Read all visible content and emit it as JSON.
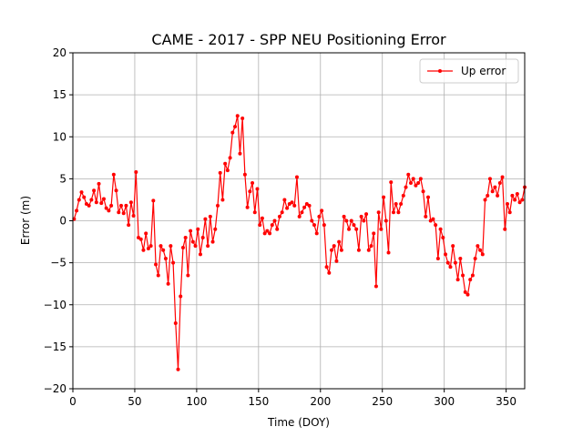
{
  "chart_data": {
    "type": "line",
    "title": "CAME - 2017 - SPP NEU Positioning Error",
    "xlabel": "Time (DOY)",
    "ylabel": "Error (m)",
    "x": [
      1,
      3,
      5,
      7,
      9,
      11,
      13,
      15,
      17,
      19,
      21,
      23,
      25,
      27,
      29,
      31,
      33,
      35,
      37,
      39,
      41,
      43,
      45,
      47,
      49,
      51,
      53,
      55,
      57,
      59,
      61,
      63,
      65,
      67,
      69,
      71,
      73,
      75,
      77,
      79,
      81,
      83,
      85,
      87,
      89,
      91,
      93,
      95,
      97,
      99,
      101,
      103,
      105,
      107,
      109,
      111,
      113,
      115,
      117,
      119,
      121,
      123,
      125,
      127,
      129,
      131,
      133,
      135,
      137,
      139,
      141,
      143,
      145,
      147,
      149,
      151,
      153,
      155,
      157,
      159,
      161,
      163,
      165,
      167,
      169,
      171,
      173,
      175,
      177,
      179,
      181,
      183,
      185,
      187,
      189,
      191,
      193,
      195,
      197,
      199,
      201,
      203,
      205,
      207,
      209,
      211,
      213,
      215,
      217,
      219,
      221,
      223,
      225,
      227,
      229,
      231,
      233,
      235,
      237,
      239,
      241,
      243,
      245,
      247,
      249,
      251,
      253,
      255,
      257,
      259,
      261,
      263,
      265,
      267,
      269,
      271,
      273,
      275,
      277,
      279,
      281,
      283,
      285,
      287,
      289,
      291,
      293,
      295,
      297,
      299,
      301,
      303,
      305,
      307,
      309,
      311,
      313,
      315,
      317,
      319,
      321,
      323,
      325,
      327,
      329,
      331,
      333,
      335,
      337,
      339,
      341,
      343,
      345,
      347,
      349,
      351,
      353,
      355,
      357,
      359,
      361,
      363,
      365
    ],
    "series": [
      {
        "name": "Up error",
        "color": "#ff0000",
        "values": [
          0.2,
          1.2,
          2.5,
          3.4,
          2.8,
          2.0,
          1.8,
          2.5,
          3.6,
          2.2,
          4.4,
          2.1,
          2.6,
          1.5,
          1.2,
          1.8,
          5.5,
          3.6,
          1.0,
          1.8,
          0.9,
          1.8,
          -0.5,
          2.2,
          0.6,
          5.8,
          -2.0,
          -2.2,
          -3.5,
          -1.5,
          -3.3,
          -3.0,
          2.4,
          -5.2,
          -6.5,
          -3.0,
          -3.5,
          -4.5,
          -7.5,
          -3.0,
          -5.0,
          -12.2,
          -17.7,
          -9.0,
          -3.2,
          -2.0,
          -6.5,
          -1.2,
          -2.5,
          -3.0,
          -1.0,
          -4.0,
          -2.0,
          0.2,
          -3.0,
          0.5,
          -2.5,
          -1.0,
          1.8,
          5.7,
          2.5,
          6.8,
          6.0,
          7.5,
          10.5,
          11.2,
          12.5,
          8.0,
          12.2,
          5.5,
          1.6,
          3.5,
          4.5,
          1.0,
          3.8,
          -0.5,
          0.3,
          -1.5,
          -1.2,
          -1.5,
          -0.5,
          0.0,
          -1.0,
          0.5,
          1.0,
          2.5,
          1.5,
          2.0,
          2.2,
          1.8,
          5.2,
          0.5,
          1.0,
          1.6,
          2.0,
          1.8,
          0.0,
          -0.5,
          -1.5,
          0.5,
          1.2,
          -0.5,
          -5.5,
          -6.2,
          -3.5,
          -3.0,
          -4.8,
          -2.5,
          -3.5,
          0.5,
          0.0,
          -1.0,
          0.0,
          -0.5,
          -1.0,
          -3.5,
          0.5,
          0.0,
          0.8,
          -3.5,
          -3.0,
          -1.5,
          -7.8,
          1.0,
          -1.0,
          2.8,
          0.0,
          -3.8,
          4.6,
          1.0,
          2.0,
          1.0,
          2.0,
          3.0,
          4.0,
          5.5,
          4.5,
          5.0,
          4.2,
          4.5,
          5.0,
          3.5,
          0.5,
          2.8,
          0.0,
          0.2,
          -0.5,
          -4.5,
          -1.0,
          -2.0,
          -4.0,
          -5.0,
          -5.5,
          -3.0,
          -5.0,
          -7.0,
          -4.5,
          -6.5,
          -8.5,
          -8.8,
          -7.0,
          -6.5,
          -4.5,
          -3.0,
          -3.5,
          -4.0,
          2.5,
          3.0,
          5.0,
          3.5,
          4.0,
          3.0,
          4.5,
          5.2,
          -1.0,
          2.0,
          1.0,
          3.0,
          2.5,
          3.2,
          2.2,
          2.5,
          4.0
        ]
      }
    ],
    "xlim": [
      0,
      365
    ],
    "ylim": [
      -20,
      20
    ],
    "xticks": [
      0,
      50,
      100,
      150,
      200,
      250,
      300,
      350
    ],
    "yticks": [
      {
        "value": -20,
        "label": "−20"
      },
      {
        "value": -15,
        "label": "−15"
      },
      {
        "value": -10,
        "label": "−10"
      },
      {
        "value": -5,
        "label": "−5"
      },
      0,
      5,
      10,
      15,
      20
    ],
    "grid": true,
    "legend": "upper right"
  }
}
